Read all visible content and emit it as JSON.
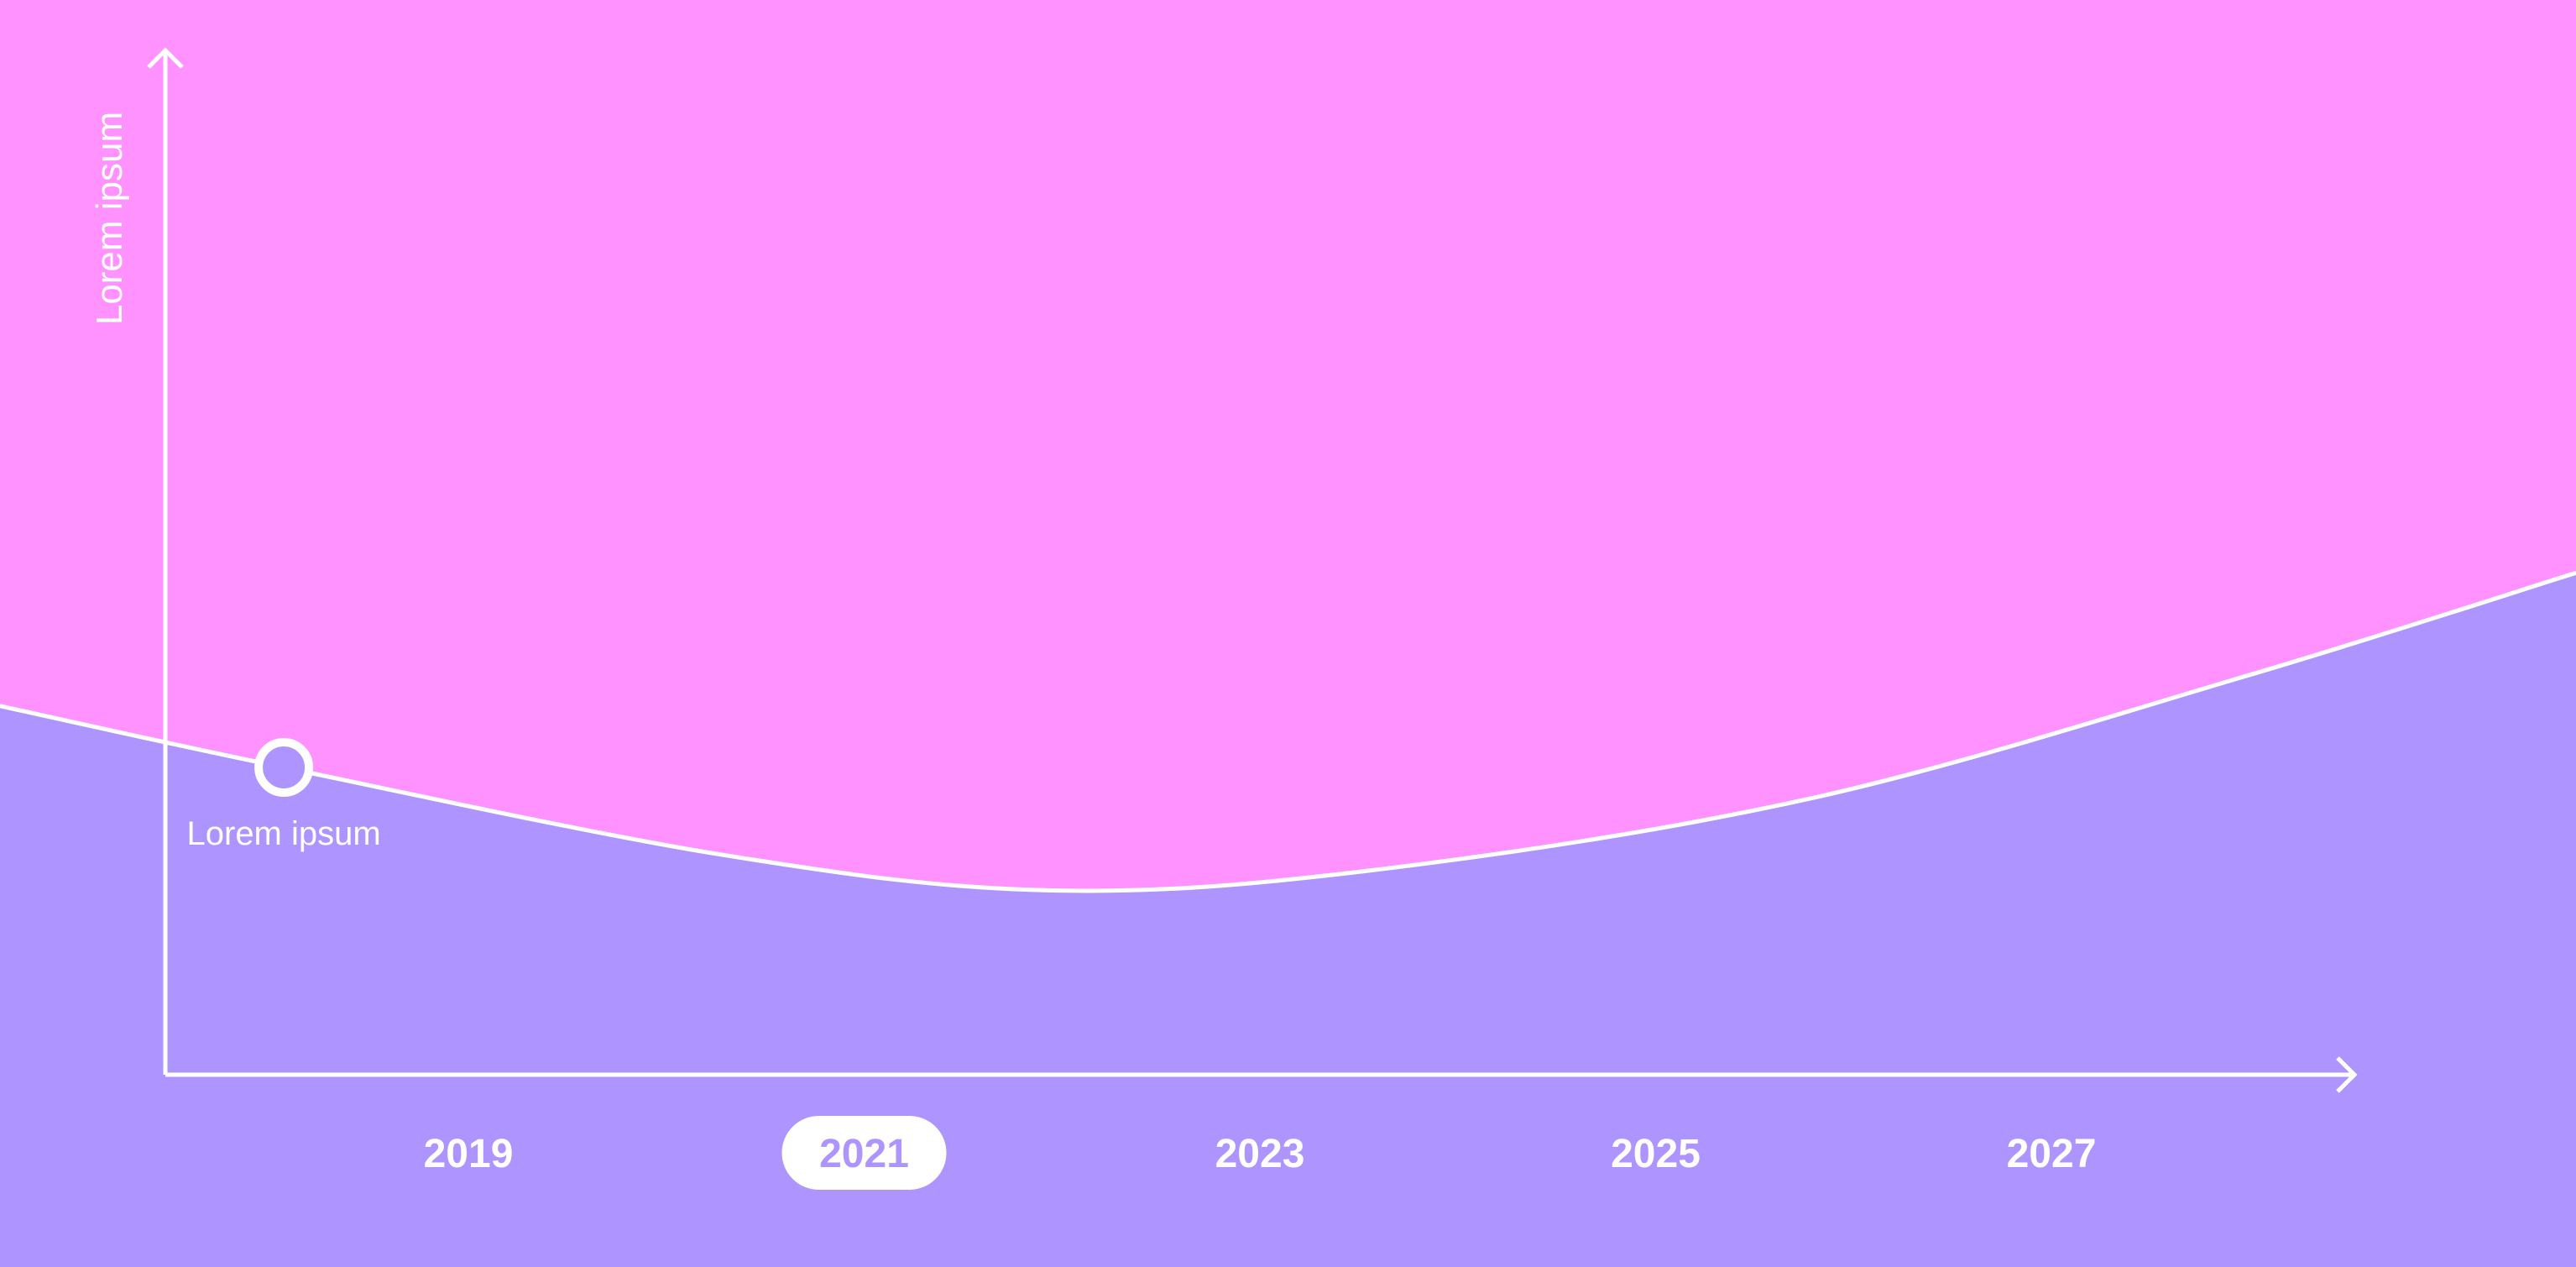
{
  "chart_data": {
    "type": "area",
    "ylabel": "Lorem ipsum",
    "xlabel": "",
    "title": "",
    "x_ticks": [
      "2019",
      "2021",
      "2023",
      "2025",
      "2027"
    ],
    "selected_tick": "2021",
    "grid": false,
    "curve": {
      "x": [
        2017.7,
        2019.0,
        2021.0,
        2022.5,
        2024.0,
        2026.0,
        2028.0,
        2029.5
      ],
      "y": [
        0.72,
        0.6,
        0.43,
        0.36,
        0.4,
        0.54,
        0.78,
        0.98
      ]
    },
    "ylim": [
      0,
      2.0
    ],
    "xlim": [
      2017.7,
      2029.5
    ],
    "highlight": {
      "x": 2019.0,
      "y": 0.6,
      "label": "Lorem ipsum"
    },
    "colors": {
      "background": "#ff92ff",
      "area_fill": "#ad94ff",
      "line": "#ffffff",
      "axis": "#ffffff"
    }
  }
}
